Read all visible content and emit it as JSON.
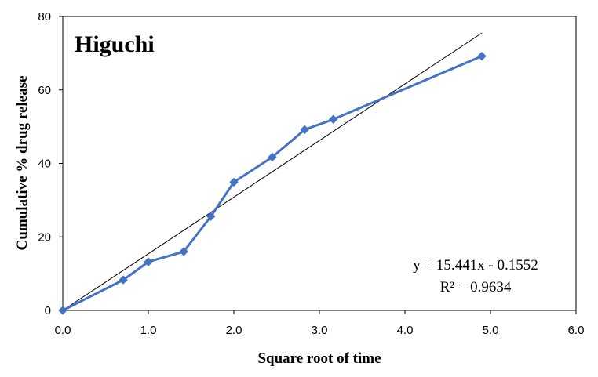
{
  "chart_data": {
    "type": "scatter",
    "title": "Higuchi",
    "xlabel": "Square root of time",
    "ylabel": "Cumulative  % drug release",
    "xlim": [
      0,
      6
    ],
    "ylim": [
      0,
      80
    ],
    "xticks": [
      "0.0",
      "1.0",
      "2.0",
      "3.0",
      "4.0",
      "5.0",
      "6.0"
    ],
    "yticks": [
      "0",
      "20",
      "40",
      "60",
      "80"
    ],
    "grid": false,
    "series": [
      {
        "x": [
          0,
          0.707,
          1.0,
          1.414,
          1.732,
          2.0,
          2.449,
          2.828,
          3.162,
          4.899
        ],
        "y": [
          0,
          8.3,
          13.2,
          16.0,
          25.6,
          34.9,
          41.7,
          49.2,
          52.0,
          69.2
        ],
        "color": "#4472C4",
        "marker": "diamond"
      }
    ],
    "trendline": {
      "slope": 15.441,
      "intercept": -0.1552,
      "x_range": [
        0,
        4.899
      ],
      "color": "#000000",
      "equation": "y = 15.441x - 0.1552",
      "r_squared": "R² = 0.9634"
    }
  }
}
